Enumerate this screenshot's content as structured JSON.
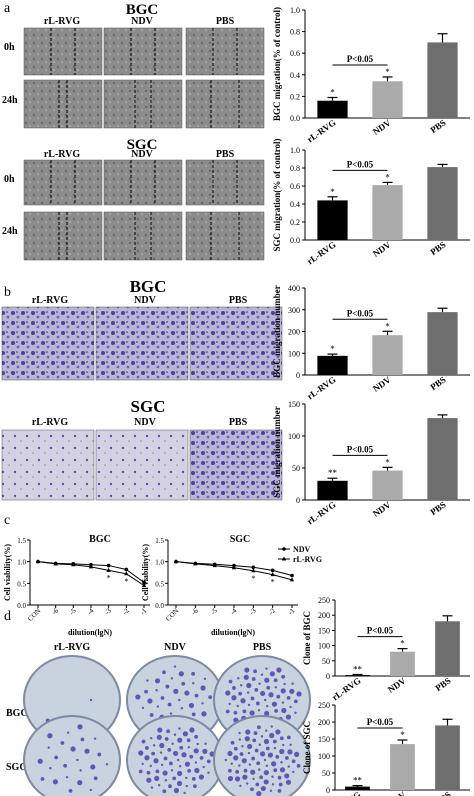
{
  "panels": {
    "a": {
      "letter": "a",
      "title1": "BGC",
      "title2": "SGC",
      "row0": "0h",
      "row24": "24h"
    },
    "b": {
      "letter": "b",
      "title1": "BGC",
      "title2": "SGC"
    },
    "c": {
      "letter": "c",
      "title1": "BGC",
      "title2": "SGC"
    },
    "d": {
      "letter": "d",
      "row1": "BGC",
      "row2": "SGC"
    }
  },
  "column_labels": [
    "rL-RVG",
    "NDV",
    "PBS"
  ],
  "colors": {
    "rL-RVG": "#000000",
    "NDV": "#aaaaaa",
    "PBS": "#6e6e6e",
    "cells_dark": "#4a4a8a",
    "stain": "#5a4bb0",
    "plate": "#c9d3e0"
  },
  "chart_data": [
    {
      "id": "a_bgc",
      "type": "bar",
      "categories": [
        "rL-RVG",
        "NDV",
        "PBS"
      ],
      "values": [
        0.16,
        0.34,
        0.7
      ],
      "errors": [
        0.03,
        0.04,
        0.08
      ],
      "stars": [
        "*",
        "*",
        ""
      ],
      "annotation": "P<0.05",
      "ylabel": "BGC migration(% of control)",
      "ylim": [
        0,
        1.0
      ],
      "yticks": [
        "0.0",
        "0.2",
        "0.4",
        "0.6",
        "0.8",
        "1.0"
      ]
    },
    {
      "id": "a_sgc",
      "type": "bar",
      "categories": [
        "rL-RVG",
        "NDV",
        "PBS"
      ],
      "values": [
        0.44,
        0.61,
        0.81
      ],
      "errors": [
        0.04,
        0.03,
        0.03
      ],
      "stars": [
        "*",
        "*",
        ""
      ],
      "annotation": "P<0.05",
      "ylabel": "SGC migration(% of control)",
      "ylim": [
        0,
        1.0
      ],
      "yticks": [
        "0.0",
        "0.2",
        "0.4",
        "0.6",
        "0.8",
        "1.0"
      ]
    },
    {
      "id": "b_bgc",
      "type": "bar",
      "categories": [
        "rL-RVG",
        "NDV",
        "PBS"
      ],
      "values": [
        88,
        183,
        289
      ],
      "errors": [
        8,
        18,
        18
      ],
      "stars": [
        "*",
        "*",
        ""
      ],
      "annotation": "P<0.05",
      "ylabel": "BGC migration number",
      "ylim": [
        0,
        400
      ],
      "yticks": [
        "0",
        "100",
        "200",
        "300",
        "400"
      ]
    },
    {
      "id": "b_sgc",
      "type": "bar",
      "categories": [
        "rL-RVG",
        "NDV",
        "PBS"
      ],
      "values": [
        30,
        46,
        128
      ],
      "errors": [
        4,
        5,
        5
      ],
      "stars": [
        "**",
        "*",
        ""
      ],
      "annotation": "P<0.05",
      "ylabel": "SGC migration number",
      "ylim": [
        0,
        150
      ],
      "yticks": [
        "0",
        "50",
        "100",
        "150"
      ]
    },
    {
      "id": "c_bgc",
      "type": "line",
      "title": "BGC",
      "xlabel": "dilution(lgN)",
      "ylabel": "Cell viability(%)",
      "x": [
        "CON",
        "-6",
        "-5",
        "-4",
        "-3",
        "-2",
        "-1"
      ],
      "ylim": [
        0,
        1.5
      ],
      "yticks": [
        "0.0",
        "0.5",
        "1.0",
        "1.5"
      ],
      "series": [
        {
          "name": "NDV",
          "values": [
            1.0,
            0.96,
            0.95,
            0.93,
            0.91,
            0.82,
            0.52
          ]
        },
        {
          "name": "rL-RVG",
          "values": [
            1.0,
            0.95,
            0.93,
            0.88,
            0.8,
            0.72,
            0.45
          ]
        }
      ],
      "stars": [
        "",
        "",
        "",
        "",
        "*",
        "*",
        ""
      ]
    },
    {
      "id": "c_sgc",
      "type": "line",
      "title": "SGC",
      "xlabel": "dilution(lgN)",
      "ylabel": "Cell viability(%)",
      "x": [
        "CON",
        "-6",
        "-5",
        "-4",
        "-3",
        "-2",
        "-1"
      ],
      "ylim": [
        0,
        1.5
      ],
      "yticks": [
        "0.0",
        "0.5",
        "1.0",
        "1.5"
      ],
      "series": [
        {
          "name": "NDV",
          "values": [
            1.0,
            0.96,
            0.94,
            0.91,
            0.87,
            0.8,
            0.68
          ]
        },
        {
          "name": "rL-RVG",
          "values": [
            1.0,
            0.95,
            0.91,
            0.86,
            0.79,
            0.7,
            0.58
          ]
        }
      ],
      "stars": [
        "",
        "",
        "",
        "",
        "*",
        "*",
        ""
      ]
    },
    {
      "id": "d_bgc",
      "type": "bar",
      "categories": [
        "rL-RVG",
        "NDV",
        "PBS"
      ],
      "values": [
        3,
        80,
        180
      ],
      "errors": [
        2,
        10,
        18
      ],
      "stars": [
        "**",
        "*",
        ""
      ],
      "annotation": "P<0.05",
      "ylabel": "Clone of BGC",
      "ylim": [
        0,
        250
      ],
      "yticks": [
        "0",
        "50",
        "100",
        "150",
        "200",
        "250"
      ]
    },
    {
      "id": "d_sgc",
      "type": "bar",
      "categories": [
        "rL-RVG",
        "NDV",
        "PBS"
      ],
      "values": [
        10,
        135,
        190
      ],
      "errors": [
        3,
        12,
        18
      ],
      "stars": [
        "**",
        "*",
        ""
      ],
      "annotation": "P<0.05",
      "ylabel": "Clone of SGC",
      "ylim": [
        0,
        250
      ],
      "yticks": [
        "0",
        "50",
        "100",
        "150",
        "200",
        "250"
      ]
    }
  ]
}
